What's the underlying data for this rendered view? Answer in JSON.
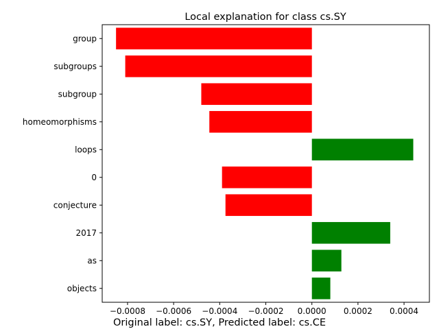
{
  "chart_data": {
    "type": "bar",
    "orientation": "horizontal",
    "title": "Local explanation for class cs.SY",
    "caption": "Original label: cs.SY, Predicted label: cs.CE",
    "categories": [
      "group",
      "subgroups",
      "subgroup",
      "homeomorphisms",
      "loops",
      "0",
      "conjecture",
      "2017",
      "as",
      "objects"
    ],
    "values": [
      -0.00085,
      -0.00081,
      -0.00048,
      -0.000445,
      0.00044,
      -0.00039,
      -0.000375,
      0.00034,
      0.000128,
      8e-05
    ],
    "xlim": [
      -0.00091,
      0.00051
    ],
    "x_ticks": [
      -0.0008,
      -0.0006,
      -0.0004,
      -0.0002,
      0.0,
      0.0002,
      0.0004
    ],
    "x_tick_labels": [
      "−0.0008",
      "−0.0006",
      "−0.0004",
      "−0.0002",
      "0.0000",
      "0.0002",
      "0.0004"
    ],
    "grid": false,
    "colors": {
      "positive": "#008000",
      "negative": "#ff0000",
      "axis": "#000000"
    }
  }
}
